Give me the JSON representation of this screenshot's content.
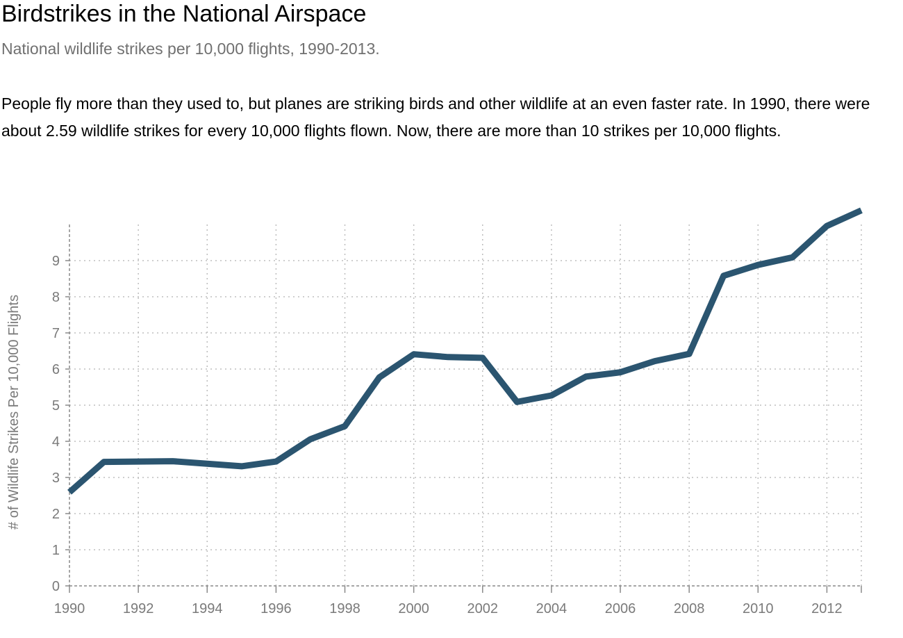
{
  "header": {
    "title": "Birdstrikes in the National Airspace",
    "subtitle": "National wildlife strikes per 10,000 flights, 1990-2013.",
    "description": "People fly more than they used to, but planes are striking birds and other wildlife at an even faster rate. In 1990, there were about 2.59 wildlife strikes for every 10,000 flights flown. Now, there are more than 10 strikes per 10,000 flights."
  },
  "chart_data": {
    "type": "line",
    "title": "",
    "xlabel": "",
    "ylabel": "# of Wildlife Strikes Per 10,000 Flights",
    "xlim": [
      1990,
      2013
    ],
    "ylim": [
      0,
      10
    ],
    "x_ticks": [
      1990,
      1992,
      1994,
      1996,
      1998,
      2000,
      2002,
      2004,
      2006,
      2008,
      2010,
      2012
    ],
    "y_ticks": [
      0,
      1,
      2,
      3,
      4,
      5,
      6,
      7,
      8,
      9
    ],
    "grid": true,
    "line_color": "#2b5570",
    "series": [
      {
        "x": [
          1990,
          1991,
          1992,
          1993,
          1994,
          1995,
          1996,
          1997,
          1998,
          1999,
          2000,
          2001,
          2002,
          2003,
          2004,
          2005,
          2006,
          2007,
          2008,
          2009,
          2010,
          2011,
          2012,
          2013
        ],
        "values": [
          2.59,
          3.43,
          3.44,
          3.45,
          3.38,
          3.31,
          3.44,
          4.06,
          4.42,
          5.77,
          6.41,
          6.33,
          6.31,
          5.09,
          5.27,
          5.79,
          5.91,
          6.22,
          6.42,
          8.58,
          8.88,
          9.09,
          9.96,
          10.39
        ]
      }
    ]
  }
}
